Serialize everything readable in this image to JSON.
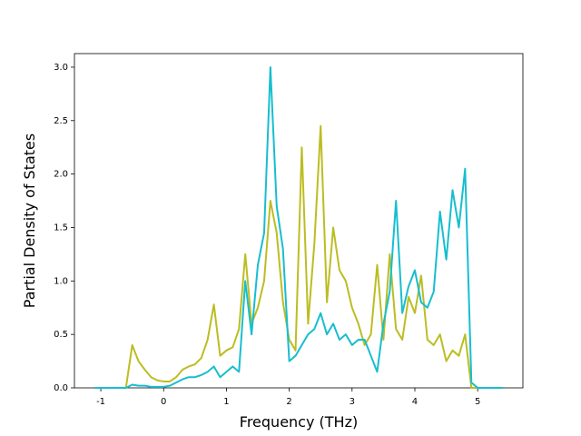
{
  "chart_data": {
    "type": "line",
    "xlabel": "Frequency (THz)",
    "ylabel": "Partial Density of States",
    "x": [
      -1.1,
      -1.0,
      -0.9,
      -0.8,
      -0.7,
      -0.6,
      -0.5,
      -0.4,
      -0.3,
      -0.2,
      -0.1,
      0.0,
      0.1,
      0.2,
      0.3,
      0.4,
      0.5,
      0.6,
      0.7,
      0.8,
      0.9,
      1.0,
      1.1,
      1.2,
      1.3,
      1.4,
      1.5,
      1.6,
      1.7,
      1.8,
      1.9,
      2.0,
      2.1,
      2.2,
      2.3,
      2.4,
      2.5,
      2.6,
      2.7,
      2.8,
      2.9,
      3.0,
      3.1,
      3.2,
      3.3,
      3.4,
      3.5,
      3.6,
      3.7,
      3.8,
      3.9,
      4.0,
      4.1,
      4.2,
      4.3,
      4.4,
      4.5,
      4.6,
      4.7,
      4.8,
      4.9,
      5.0,
      5.1,
      5.2,
      5.3,
      5.4
    ],
    "series": [
      {
        "color": "#bcbd22",
        "values": [
          0,
          0,
          0,
          0,
          0,
          0,
          0.4,
          0.25,
          0.17,
          0.1,
          0.07,
          0.06,
          0.06,
          0.1,
          0.17,
          0.2,
          0.22,
          0.28,
          0.45,
          0.78,
          0.3,
          0.35,
          0.38,
          0.55,
          1.25,
          0.6,
          0.75,
          1.0,
          1.75,
          1.45,
          0.8,
          0.45,
          0.35,
          2.25,
          0.6,
          1.35,
          2.45,
          0.8,
          1.5,
          1.1,
          1.0,
          0.75,
          0.6,
          0.4,
          0.5,
          1.15,
          0.45,
          1.25,
          0.55,
          0.45,
          0.85,
          0.7,
          1.05,
          0.45,
          0.4,
          0.5,
          0.25,
          0.35,
          0.3,
          0.5,
          0,
          0,
          0,
          0,
          0,
          0
        ]
      },
      {
        "color": "#17becf",
        "values": [
          0,
          0,
          0,
          0,
          0,
          0,
          0.03,
          0.02,
          0.02,
          0.01,
          0.01,
          0.01,
          0.02,
          0.05,
          0.08,
          0.1,
          0.1,
          0.12,
          0.15,
          0.2,
          0.1,
          0.15,
          0.2,
          0.15,
          1.0,
          0.5,
          1.15,
          1.45,
          3.0,
          1.7,
          1.3,
          0.25,
          0.3,
          0.4,
          0.5,
          0.55,
          0.7,
          0.5,
          0.6,
          0.45,
          0.5,
          0.4,
          0.45,
          0.45,
          0.3,
          0.15,
          0.6,
          0.9,
          1.75,
          0.7,
          0.95,
          1.1,
          0.8,
          0.75,
          0.9,
          1.65,
          1.2,
          1.85,
          1.5,
          2.05,
          0.05,
          0,
          0,
          0,
          0,
          0
        ]
      }
    ],
    "xlim": [
      -1.42,
      5.72
    ],
    "ylim": [
      0,
      3.127
    ],
    "xticks": [
      -1,
      0,
      1,
      2,
      3,
      4,
      5
    ],
    "yticks": [
      {
        "value": 0,
        "label": "0.0"
      },
      {
        "value": 0.5,
        "label": "0.5"
      },
      {
        "value": 1,
        "label": "1.0"
      },
      {
        "value": 1.5,
        "label": "1.5"
      },
      {
        "value": 2,
        "label": "2.0"
      },
      {
        "value": 2.5,
        "label": "2.5"
      },
      {
        "value": 3,
        "label": "3.0"
      }
    ]
  }
}
